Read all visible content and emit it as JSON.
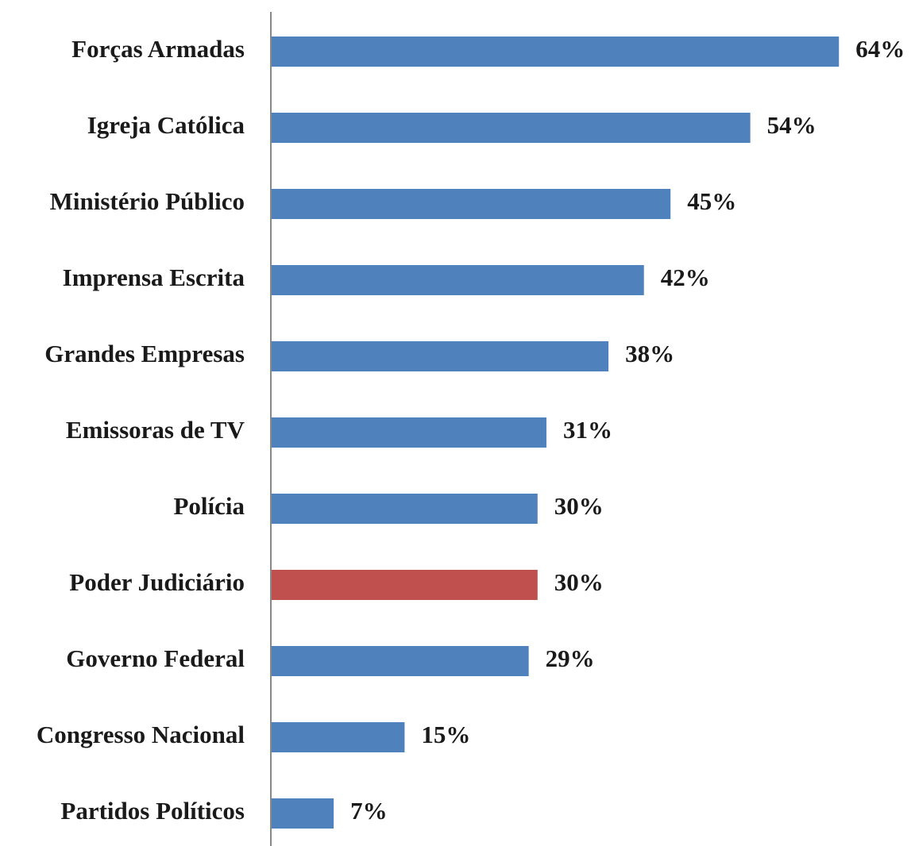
{
  "chart_data": {
    "type": "barh",
    "categories": [
      "Forças Armadas",
      "Igreja Católica",
      "Ministério Público",
      "Imprensa Escrita",
      "Grandes Empresas",
      "Emissoras de TV",
      "Polícia",
      "Poder Judiciário",
      "Governo Federal",
      "Congresso Nacional",
      "Partidos Políticos"
    ],
    "values": [
      64,
      54,
      45,
      42,
      38,
      31,
      30,
      30,
      29,
      15,
      7
    ],
    "value_labels": [
      "64%",
      "54%",
      "45%",
      "42%",
      "38%",
      "31%",
      "30%",
      "30%",
      "29%",
      "15%",
      "7%"
    ],
    "colors": [
      "#4f81bd",
      "#4f81bd",
      "#4f81bd",
      "#4f81bd",
      "#4f81bd",
      "#4f81bd",
      "#4f81bd",
      "#c0504d",
      "#4f81bd",
      "#4f81bd",
      "#4f81bd"
    ]
  }
}
